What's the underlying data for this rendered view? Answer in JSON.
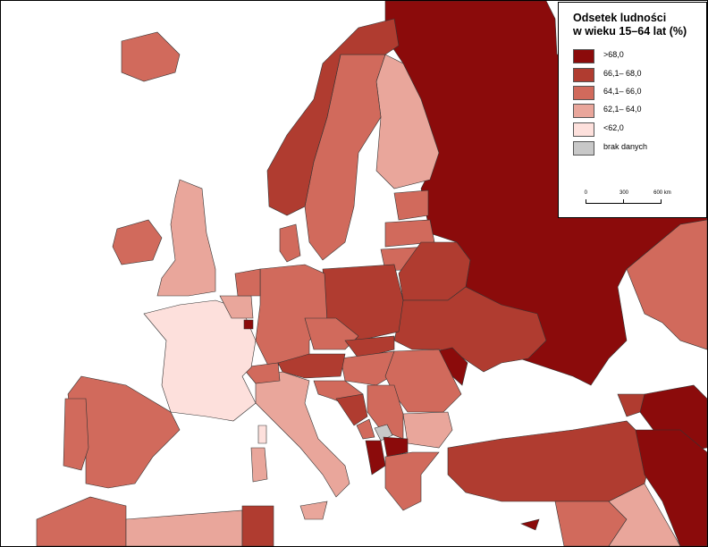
{
  "legend": {
    "title_line1": "Odsetek ludności",
    "title_line2": "w wieku 15–64 lat (%)",
    "classes": [
      {
        "label": ">68,0",
        "color": "#8b0b0b"
      },
      {
        "label": "66,1– 68,0",
        "color": "#b03c30"
      },
      {
        "label": "64,1– 66,0",
        "color": "#d16a5c"
      },
      {
        "label": "62,1– 64,0",
        "color": "#e9a69b"
      },
      {
        "label": "<62,0",
        "color": "#fde0dc"
      },
      {
        "label": "brak danych",
        "color": "#c8c8c8"
      }
    ],
    "scale": {
      "labels": [
        "0",
        "300",
        "600 km"
      ]
    }
  },
  "map": {
    "sea_color": "#ffffff",
    "border_color": "#333333"
  }
}
